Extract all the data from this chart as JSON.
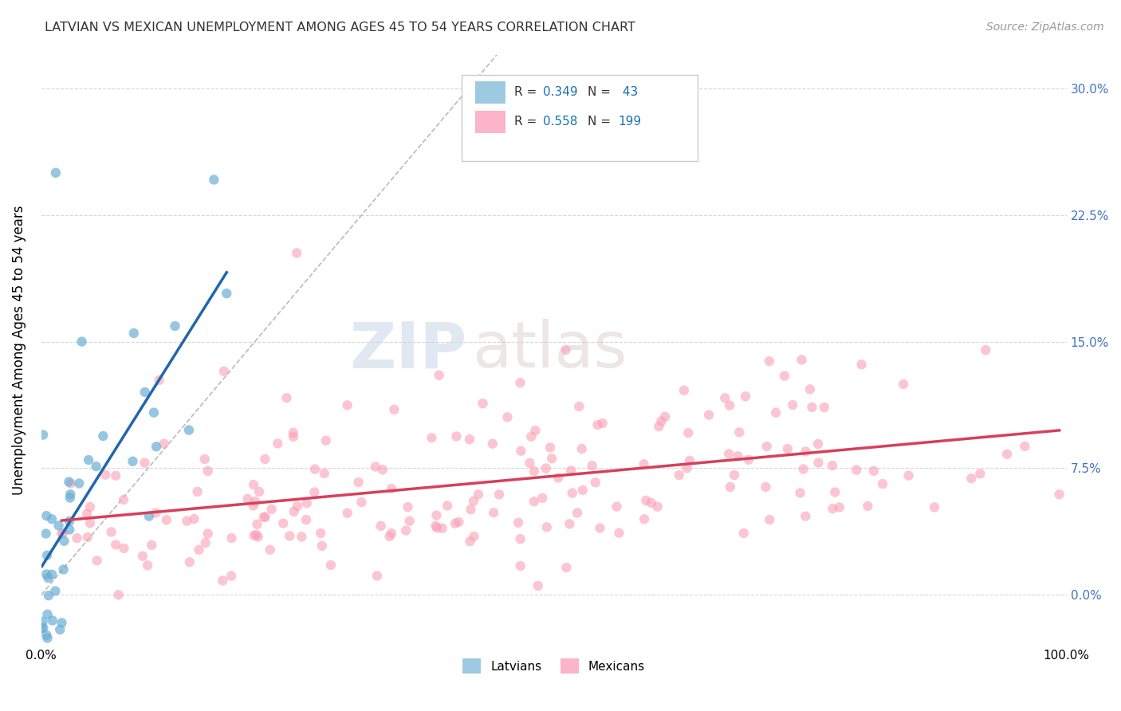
{
  "title": "LATVIAN VS MEXICAN UNEMPLOYMENT AMONG AGES 45 TO 54 YEARS CORRELATION CHART",
  "source": "Source: ZipAtlas.com",
  "ylabel": "Unemployment Among Ages 45 to 54 years",
  "xlabel": "",
  "watermark_zip": "ZIP",
  "watermark_atlas": "atlas",
  "latvian_R": 0.349,
  "latvian_N": 43,
  "mexican_R": 0.558,
  "mexican_N": 199,
  "latvian_color": "#6baed6",
  "mexican_color": "#fa9fb5",
  "latvian_trend_color": "#2166ac",
  "mexican_trend_color": "#d6405a",
  "background_color": "#ffffff",
  "grid_color": "#cccccc",
  "xlim": [
    0,
    100
  ],
  "ylim": [
    -3,
    32
  ],
  "yticks": [
    0,
    7.5,
    15.0,
    22.5,
    30.0
  ],
  "yticklabels": [
    "0.0%",
    "7.5%",
    "15.0%",
    "22.5%",
    "30.0%"
  ],
  "latvian_seed": 42,
  "mexican_seed": 7
}
